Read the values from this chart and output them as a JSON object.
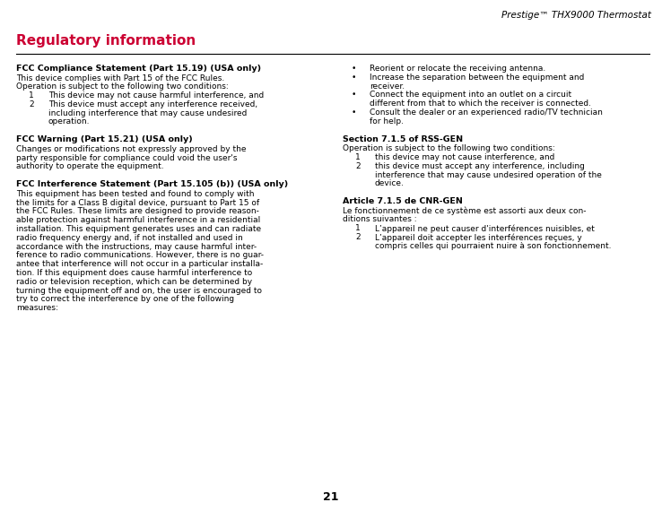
{
  "page_title": "Prestige™ THX9000 Thermostat",
  "section_heading": "Regulatory information",
  "page_number": "21",
  "background_color": "#ffffff",
  "heading_color": "#cc0033",
  "text_color": "#000000",
  "sections_left": [
    {
      "type": "bold_heading",
      "text": "FCC Compliance Statement (Part 15.19) (USA only)"
    },
    {
      "type": "body",
      "lines": [
        "This device complies with Part 15 of the FCC Rules.",
        "Operation is subject to the following two conditions:"
      ]
    },
    {
      "type": "numbered",
      "items": [
        [
          "This device may not cause harmful interference, and"
        ],
        [
          "This device must accept any interference received,",
          "including interference that may cause undesired",
          "operation."
        ]
      ]
    },
    {
      "type": "spacer"
    },
    {
      "type": "bold_heading",
      "text": "FCC Warning (Part 15.21) (USA only)"
    },
    {
      "type": "body",
      "lines": [
        "Changes or modifications not expressly approved by the",
        "party responsible for compliance could void the user's",
        "authority to operate the equipment."
      ]
    },
    {
      "type": "spacer"
    },
    {
      "type": "bold_heading",
      "text": "FCC Interference Statement (Part 15.105 (b)) (USA only)"
    },
    {
      "type": "body",
      "lines": [
        "This equipment has been tested and found to comply with",
        "the limits for a Class B digital device, pursuant to Part 15 of",
        "the FCC Rules. These limits are designed to provide reason-",
        "able protection against harmful interference in a residential",
        "installation. This equipment generates uses and can radiate",
        "radio frequency energy and, if not installed and used in",
        "accordance with the instructions, may cause harmful inter-",
        "ference to radio communications. However, there is no guar-",
        "antee that interference will not occur in a particular installa-",
        "tion. If this equipment does cause harmful interference to",
        "radio or television reception, which can be determined by",
        "turning the equipment off and on, the user is encouraged to",
        "try to correct the interference by one of the following",
        "measures:"
      ]
    }
  ],
  "sections_right": [
    {
      "type": "bullets",
      "items": [
        [
          "Reorient or relocate the receiving antenna."
        ],
        [
          "Increase the separation between the equipment and",
          "receiver."
        ],
        [
          "Connect the equipment into an outlet on a circuit",
          "different from that to which the receiver is connected."
        ],
        [
          "Consult the dealer or an experienced radio/TV technician",
          "for help."
        ]
      ]
    },
    {
      "type": "spacer"
    },
    {
      "type": "bold_heading",
      "text": "Section 7.1.5 of RSS-GEN"
    },
    {
      "type": "body",
      "lines": [
        "Operation is subject to the following two conditions:"
      ]
    },
    {
      "type": "numbered",
      "items": [
        [
          "this device may not cause interference, and"
        ],
        [
          "this device must accept any interference, including",
          "interference that may cause undesired operation of the",
          "device."
        ]
      ]
    },
    {
      "type": "spacer"
    },
    {
      "type": "bold_heading",
      "text": "Article 7.1.5 de CNR-GEN"
    },
    {
      "type": "body",
      "lines": [
        "Le fonctionnement de ce système est assorti aux deux con-",
        "ditions suivantes :"
      ]
    },
    {
      "type": "numbered",
      "items": [
        [
          "L’appareil ne peut causer d'interférences nuisibles, et"
        ],
        [
          "L’appareil doit accepter les interférences reçues, y",
          "compris celles qui pourraient nuire à son fonctionnement."
        ]
      ]
    }
  ]
}
